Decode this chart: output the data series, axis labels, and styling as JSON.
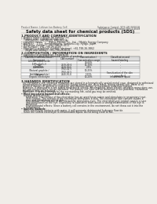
{
  "bg_color": "#f0ede8",
  "header_left": "Product Name: Lithium Ion Battery Cell",
  "header_right_line1": "Substance Control: SDS-LIB-000018",
  "header_right_line2": "Established / Revision: Dec.1.2019",
  "title": "Safety data sheet for chemical products (SDS)",
  "section1_title": "1 PRODUCT AND COMPANY IDENTIFICATION",
  "section1_lines": [
    "• Product name: Lithium Ion Battery Cell",
    "• Product code: Cylindrical-type cell",
    "     (IFR18650U, IFR18650L, IFR18650A)",
    "• Company name:        Banyu Electric Co., Ltd.  / Mobile Energy Company",
    "• Address:    2-5-1  Kamimaimairu, Sumairu-City, Hyogo, Japan",
    "• Telephone number:   +81-798-26-4111",
    "• Fax number:  +81-798-26-4129",
    "• Emergency telephone number (daytime): +81-798-26-3862",
    "     (Night and holiday): +81-798-26-4101"
  ],
  "section2_title": "2 COMPOSITION / INFORMATION ON INGREDIENTS",
  "section2_intro": "• Substance or preparation: Preparation",
  "section2_sub": "• Information about the chemical nature of product:",
  "table_header_texts": [
    "Common chemical name /\nComponent",
    "CAS number",
    "Concentration /\nConcentration range",
    "Classification and\nhazard labeling"
  ],
  "table_rows": [
    [
      "Lithium cobalt oxide\n(LiMn₂(CoO₂))",
      "-",
      "30-60%",
      "-"
    ],
    [
      "Iron",
      "7439-89-6",
      "15-30%",
      "-"
    ],
    [
      "Aluminium",
      "7429-90-5",
      "2-5%",
      "-"
    ],
    [
      "Graphite\n(Natural graphite /\nArtificial graphite)",
      "7782-42-5\n7782-42-5",
      "10-25%",
      "-"
    ],
    [
      "Copper",
      "7440-50-8",
      "5-15%",
      "Sensitization of the skin\ngroup No.2"
    ],
    [
      "Organic electrolyte",
      "-",
      "10-20%",
      "Inflammable liquid"
    ]
  ],
  "section3_title": "3 HAZARDS IDENTIFICATION",
  "section3_paras": [
    "For the battery cell, chemical materials are stored in a hermetically sealed metal case, designed to withstand",
    "temperatures in general-use-conditions during normal use. As a result, during normal use, there is no",
    "physical danger of ignition or explosion and thermal-danger of hazardous materials leakage.",
    "However, if exposed to a fire added mechanical shocks, decomposed, when electric wiring in many does use,",
    "the gas insides vents can be operated. The battery cell case will be breached or fire potential, hazardous",
    "materials may be released.",
    "Moreover, if heated strongly by the surrounding fire, solid gas may be emitted."
  ],
  "bullet1_title": "• Most important hazard and effects:",
  "bullet1_sub": "Human health effects:",
  "bullet1_items": [
    "Inhalation: The release of the electrolyte has an anesthesia action and stimulates in respiratory tract.",
    "Skin contact: The release of the electrolyte stimulates a skin. The electrolyte skin contact causes a",
    "sore and stimulation on the skin.",
    "Eye contact: The release of the electrolyte stimulates eyes. The electrolyte eye contact causes a sore",
    "and stimulation on the eye. Especially, a substance that causes a strong inflammation of the eye is",
    "contained.",
    "Environmental effects: Since a battery cell remains in the environment, do not throw out it into the",
    "environment."
  ],
  "bullet2_title": "• Specific hazards:",
  "bullet2_items": [
    "If the electrolyte contacts with water, it will generate detrimental hydrogen fluoride.",
    "Since the sealed electrolyte is inflammable liquid, do not bring close to fire."
  ]
}
